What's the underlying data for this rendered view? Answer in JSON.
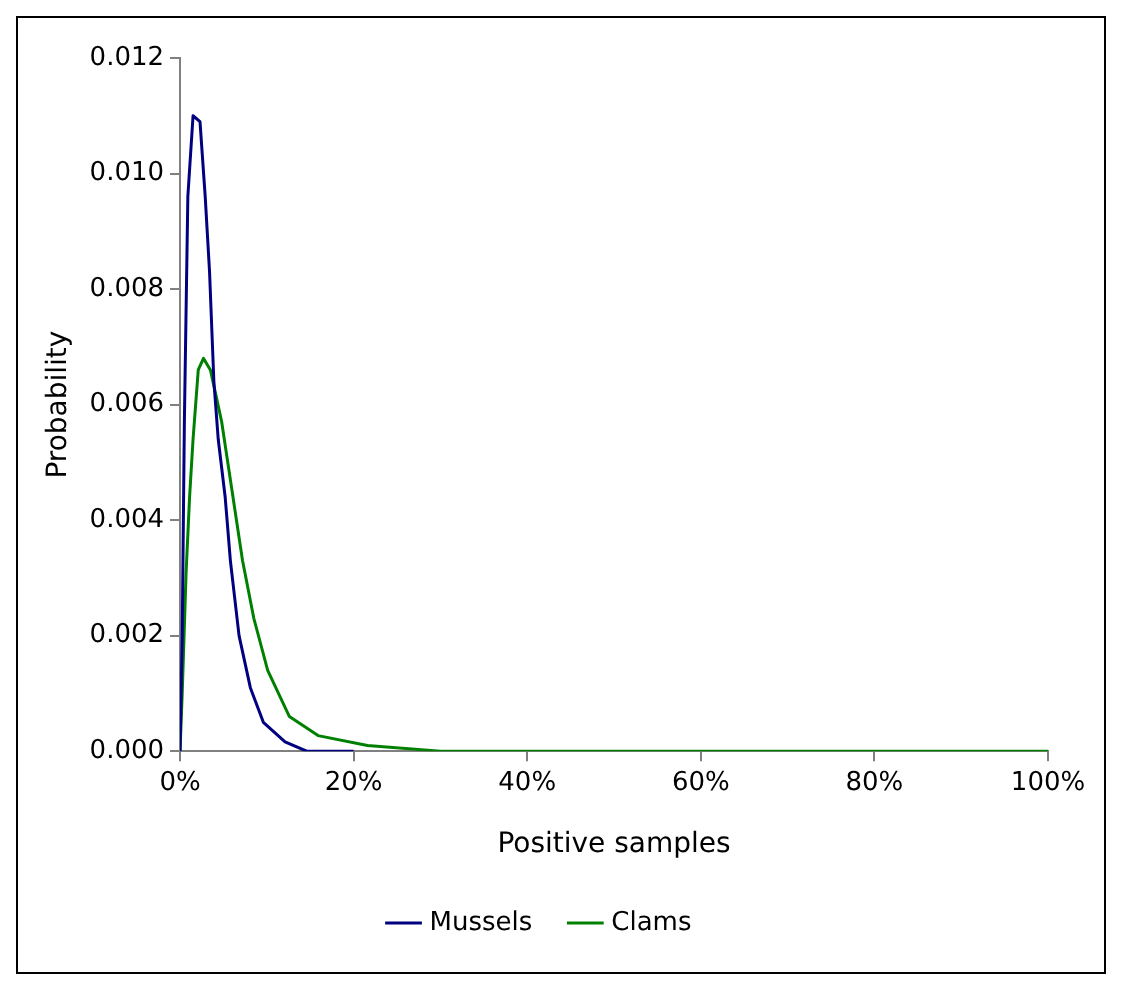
{
  "chart_data": {
    "type": "line",
    "xlabel": "Positive samples",
    "ylabel": "Probability",
    "xlim": [
      0,
      100
    ],
    "xticks": [
      {
        "value": 0,
        "label": "0%"
      },
      {
        "value": 20,
        "label": "20%"
      },
      {
        "value": 40,
        "label": "40%"
      },
      {
        "value": 60,
        "label": "60%"
      },
      {
        "value": 80,
        "label": "80%"
      },
      {
        "value": 100,
        "label": "100%"
      }
    ],
    "ylim": [
      0,
      0.012
    ],
    "yticks": [
      {
        "value": 0,
        "label": "0.000"
      },
      {
        "value": 0.002,
        "label": "0.002"
      },
      {
        "value": 0.004,
        "label": "0.004"
      },
      {
        "value": 0.006,
        "label": "0.006"
      },
      {
        "value": 0.008,
        "label": "0.008"
      },
      {
        "value": 0.01,
        "label": "0.010"
      },
      {
        "value": 0.012,
        "label": "0.012"
      }
    ],
    "grid": false,
    "legend": "bottom",
    "marker": "none",
    "line_style": "solid",
    "series": [
      {
        "name": "Mussels",
        "color": "#000080",
        "x": [
          0,
          0.25,
          0.5,
          0.9,
          1.5,
          2.3,
          2.9,
          3.4,
          3.9,
          4.4,
          5.2,
          5.8,
          6.8,
          8.1,
          9.6,
          12.1,
          14.6,
          20
        ],
        "values": [
          0,
          0.002,
          0.0057,
          0.0096,
          0.011,
          0.0109,
          0.0096,
          0.0083,
          0.0064,
          0.0054,
          0.0044,
          0.0033,
          0.002,
          0.0011,
          0.0005,
          0.00016,
          0,
          0
        ]
      },
      {
        "name": "Clams",
        "color": "#008000",
        "x": [
          0,
          0.25,
          0.7,
          1.1,
          1.5,
          2.1,
          2.7,
          3.5,
          4.8,
          6,
          7.2,
          8.5,
          10.1,
          12.6,
          15.9,
          21.6,
          30,
          40,
          60,
          80,
          100
        ],
        "values": [
          0,
          0.001,
          0.0031,
          0.0044,
          0.0054,
          0.0066,
          0.0068,
          0.0066,
          0.0057,
          0.0045,
          0.0033,
          0.0023,
          0.0014,
          0.0006,
          0.00027,
          0.0001,
          0,
          0,
          0,
          0,
          0
        ]
      }
    ]
  }
}
